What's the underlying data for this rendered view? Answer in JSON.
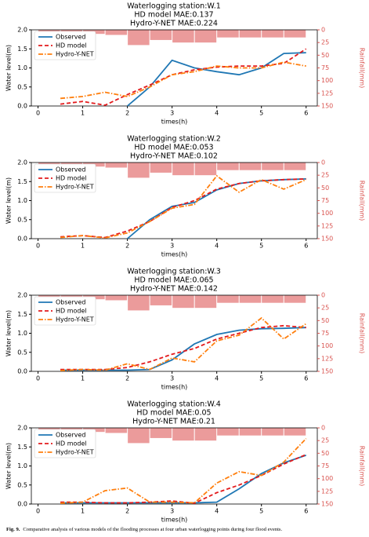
{
  "chart_data": [
    {
      "type": "line",
      "title": [
        "Waterlogging station:W.1",
        "HD model MAE:0.137",
        "Hydro-Y-NET MAE:0.224"
      ],
      "x_label": "times(h)",
      "y_label": "Water level(m)",
      "y2_label": "Rainfall(mm)",
      "x": [
        0.5,
        1,
        1.5,
        2,
        2.5,
        3,
        3.5,
        4,
        4.5,
        5,
        5.5,
        6
      ],
      "series": [
        {
          "name": "Observed",
          "color": "#1f77b4",
          "style": "solid",
          "values": [
            null,
            null,
            null,
            0,
            0.5,
            1.2,
            1.0,
            0.9,
            0.82,
            1.0,
            1.38,
            1.4
          ]
        },
        {
          "name": "HD model",
          "color": "#e31a1c",
          "style": "dashed",
          "values": [
            0.05,
            0.12,
            0.02,
            0.3,
            0.55,
            0.82,
            0.95,
            1.02,
            1.05,
            1.05,
            1.12,
            1.5
          ]
        },
        {
          "name": "Hydro-Y-NET",
          "color": "#ff7f0e",
          "style": "dashdot",
          "values": [
            0.2,
            0.25,
            0.36,
            0.25,
            0.5,
            0.82,
            0.9,
            1.05,
            1.0,
            1.0,
            1.15,
            1.05
          ]
        }
      ],
      "rainfall": {
        "color": "#e8898a",
        "axis": "y2",
        "values": [
          5,
          5,
          8,
          10,
          30,
          20,
          25,
          25,
          15,
          15,
          15,
          15
        ]
      },
      "xlim": [
        -0.15,
        6.25
      ],
      "xticks": [
        0,
        1,
        2,
        3,
        4,
        5,
        6
      ],
      "ylim": [
        0,
        2
      ],
      "yticks": [
        {
          "value": 0,
          "label": "0.0"
        },
        {
          "value": 0.5,
          "label": "0.5"
        },
        {
          "value": 1,
          "label": "1.0"
        },
        {
          "value": 1.5,
          "label": "1.5"
        },
        {
          "value": 2,
          "label": "2.0"
        }
      ],
      "y2lim": [
        150,
        0
      ],
      "y2ticks": [
        0,
        25,
        50,
        75,
        100,
        125,
        150
      ]
    },
    {
      "type": "line",
      "title": [
        "Waterlogging station:W.2",
        "HD model MAE:0.053",
        "Hydro-Y-NET MAE:0.102"
      ],
      "x_label": "times(h)",
      "y_label": "Water level(m)",
      "y2_label": "Rainfall(mm)",
      "x": [
        0.5,
        1,
        1.5,
        2,
        2.5,
        3,
        3.5,
        4,
        4.5,
        5,
        5.5,
        6
      ],
      "series": [
        {
          "name": "Observed",
          "color": "#1f77b4",
          "style": "solid",
          "values": [
            null,
            null,
            null,
            0,
            0.5,
            0.85,
            0.95,
            1.28,
            1.45,
            1.52,
            1.55,
            1.57
          ]
        },
        {
          "name": "HD model",
          "color": "#e31a1c",
          "style": "dashed",
          "values": [
            0.05,
            0.08,
            0.03,
            0.2,
            0.45,
            0.82,
            1.0,
            1.3,
            1.45,
            1.52,
            1.55,
            1.57
          ]
        },
        {
          "name": "Hydro-Y-NET",
          "color": "#ff7f0e",
          "style": "dashdot",
          "values": [
            0.03,
            0.08,
            0.02,
            0.15,
            0.45,
            0.8,
            0.9,
            1.65,
            1.22,
            1.55,
            1.3,
            1.55
          ]
        }
      ],
      "rainfall": {
        "color": "#e8898a",
        "axis": "y2",
        "values": [
          5,
          5,
          8,
          10,
          30,
          20,
          25,
          25,
          15,
          15,
          15,
          15
        ]
      },
      "xlim": [
        -0.15,
        6.25
      ],
      "xticks": [
        0,
        1,
        2,
        3,
        4,
        5,
        6
      ],
      "ylim": [
        0,
        2
      ],
      "yticks": [
        {
          "value": 0,
          "label": "0.0"
        },
        {
          "value": 0.5,
          "label": "0.5"
        },
        {
          "value": 1,
          "label": "1.0"
        },
        {
          "value": 1.5,
          "label": "1.5"
        },
        {
          "value": 2,
          "label": "2.0"
        }
      ],
      "y2lim": [
        150,
        0
      ],
      "y2ticks": [
        0,
        25,
        50,
        75,
        100,
        125,
        150
      ]
    },
    {
      "type": "line",
      "title": [
        "Waterlogging station:W.3",
        "HD model MAE:0.065",
        "Hydro-Y-NET MAE:0.142"
      ],
      "x_label": "times(h)",
      "y_label": "Water level(m)",
      "y2_label": "Rainfall(mm)",
      "x": [
        0.5,
        1,
        1.5,
        2,
        2.5,
        3,
        3.5,
        4,
        4.5,
        5,
        5.5,
        6
      ],
      "series": [
        {
          "name": "Observed",
          "color": "#1f77b4",
          "style": "solid",
          "values": [
            0.03,
            0.03,
            0.03,
            0.03,
            0.05,
            0.3,
            0.72,
            0.97,
            1.08,
            1.12,
            1.13,
            1.15
          ]
        },
        {
          "name": "HD model",
          "color": "#e31a1c",
          "style": "dashed",
          "values": [
            0.05,
            0.05,
            0.05,
            0.1,
            0.25,
            0.45,
            0.6,
            0.85,
            1.0,
            1.15,
            1.2,
            1.15
          ]
        },
        {
          "name": "Hydro-Y-NET",
          "color": "#ff7f0e",
          "style": "dashdot",
          "values": [
            0.02,
            0.05,
            0.03,
            0.2,
            0.05,
            0.35,
            0.25,
            0.8,
            0.95,
            1.4,
            0.85,
            1.25
          ]
        }
      ],
      "rainfall": {
        "color": "#e8898a",
        "axis": "y2",
        "values": [
          5,
          5,
          8,
          10,
          30,
          20,
          25,
          25,
          15,
          15,
          15,
          15
        ]
      },
      "xlim": [
        -0.15,
        6.25
      ],
      "xticks": [
        0,
        1,
        2,
        3,
        4,
        5,
        6
      ],
      "ylim": [
        0,
        2
      ],
      "yticks": [
        {
          "value": 0,
          "label": "0.0"
        },
        {
          "value": 0.5,
          "label": "0.5"
        },
        {
          "value": 1,
          "label": "1.0"
        },
        {
          "value": 1.5,
          "label": "1.5"
        },
        {
          "value": 2,
          "label": "2.0"
        }
      ],
      "y2lim": [
        150,
        0
      ],
      "y2ticks": [
        0,
        25,
        50,
        75,
        100,
        125,
        150
      ]
    },
    {
      "type": "line",
      "title": [
        "Waterlogging station:W.4",
        "HD model MAE:0.05",
        "Hydro-Y-NET MAE:0.21"
      ],
      "x_label": "times(h)",
      "y_label": "Water level(m)",
      "y2_label": "Rainfall(mm)",
      "x": [
        0.5,
        1,
        1.5,
        2,
        2.5,
        3,
        3.5,
        4,
        4.5,
        5,
        5.5,
        6
      ],
      "series": [
        {
          "name": "Observed",
          "color": "#1f77b4",
          "style": "solid",
          "values": [
            0.03,
            0.03,
            0.03,
            0.03,
            0.03,
            0.03,
            0.03,
            0.05,
            0.4,
            0.8,
            1.08,
            1.28
          ]
        },
        {
          "name": "HD model",
          "color": "#e31a1c",
          "style": "dashed",
          "values": [
            0.05,
            0.05,
            0.03,
            0.03,
            0.05,
            0.08,
            0.02,
            0.3,
            0.5,
            0.75,
            1.05,
            1.3
          ]
        },
        {
          "name": "Hydro-Y-NET",
          "color": "#ff7f0e",
          "style": "dashdot",
          "values": [
            0.02,
            0.05,
            0.35,
            0.42,
            0.05,
            0.05,
            0.03,
            0.55,
            0.85,
            0.75,
            1.1,
            1.72
          ]
        }
      ],
      "rainfall": {
        "color": "#e8898a",
        "axis": "y2",
        "values": [
          5,
          5,
          8,
          10,
          30,
          20,
          25,
          25,
          15,
          15,
          15,
          15
        ]
      },
      "xlim": [
        -0.15,
        6.25
      ],
      "xticks": [
        0,
        1,
        2,
        3,
        4,
        5,
        6
      ],
      "ylim": [
        0,
        2
      ],
      "yticks": [
        {
          "value": 0,
          "label": "0.0"
        },
        {
          "value": 0.5,
          "label": "0.5"
        },
        {
          "value": 1,
          "label": "1.0"
        },
        {
          "value": 1.5,
          "label": "1.5"
        },
        {
          "value": 2,
          "label": "2.0"
        }
      ],
      "y2lim": [
        150,
        0
      ],
      "y2ticks": [
        0,
        25,
        50,
        75,
        100,
        125,
        150
      ]
    }
  ],
  "caption": {
    "label": "Fig. 9.",
    "text": "Comparative analysis of various models of the flooding processes at four urban waterlogging points during four flood events."
  }
}
